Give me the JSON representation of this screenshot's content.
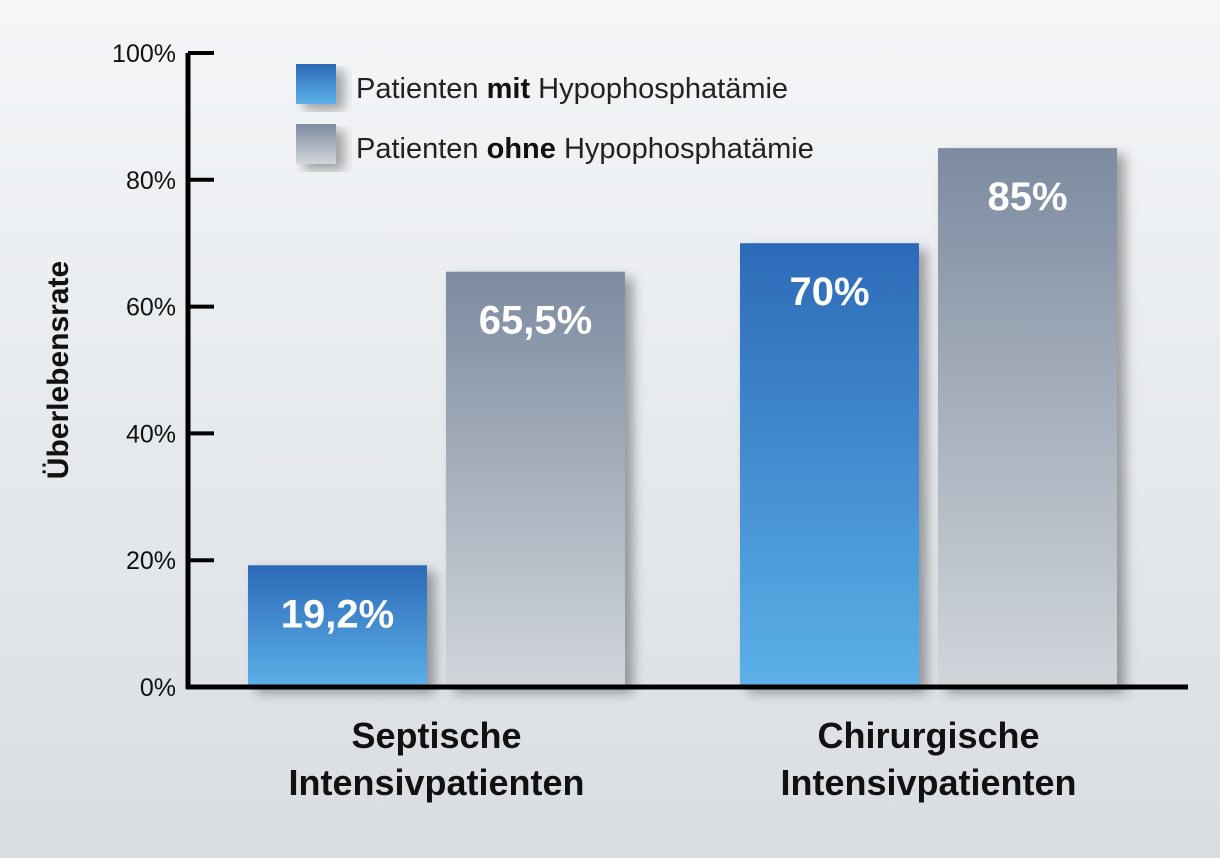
{
  "colors": {
    "series_mit_top": "#2c6ab8",
    "series_mit_bottom": "#5cb0e8",
    "series_ohne_top": "#7d8ba0",
    "series_ohne_bottom": "#d2d6db",
    "background_top": "#f4f6f8",
    "background_bottom": "#d9dde2",
    "axis": "#000000"
  },
  "chart_data": {
    "type": "bar",
    "ylabel": "Überlebensrate",
    "ylim": [
      0,
      100
    ],
    "yticks": [
      0,
      20,
      40,
      60,
      80,
      100
    ],
    "ytick_labels": [
      "0%",
      "20%",
      "40%",
      "60%",
      "80%",
      "100%"
    ],
    "categories": [
      {
        "line1": "Septische",
        "line2": "Intensivpatienten"
      },
      {
        "line1": "Chirurgische",
        "line2": "Intensivpatienten"
      }
    ],
    "series": [
      {
        "legend": {
          "prefix": "Patienten ",
          "emphasis": "mit",
          "suffix": " Hypophosphatämie"
        },
        "values": [
          19.2,
          70
        ],
        "value_labels": [
          "19,2%",
          "70%"
        ]
      },
      {
        "legend": {
          "prefix": "Patienten ",
          "emphasis": "ohne",
          "suffix": " Hypophosphatämie"
        },
        "values": [
          65.5,
          85
        ],
        "value_labels": [
          "65,5%",
          "85%"
        ]
      }
    ],
    "legend_position": "top-left",
    "grid": false
  }
}
